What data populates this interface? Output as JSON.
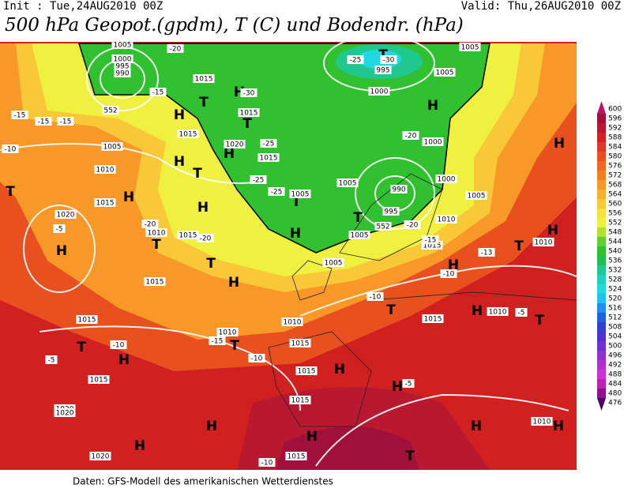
{
  "header": {
    "init": "Init : Tue,24AUG2010 00Z",
    "valid": "Valid: Thu,26AUG2010 00Z",
    "title": "500 hPa Geopot.(gpdm), T (C) und Bodendr. (hPa)"
  },
  "footer": "Daten: GFS-Modell des amerikanischen Wetterdienstes",
  "colorbar": {
    "labels": [
      600,
      596,
      592,
      588,
      584,
      580,
      576,
      572,
      568,
      564,
      560,
      556,
      552,
      548,
      544,
      540,
      536,
      532,
      528,
      524,
      520,
      516,
      512,
      508,
      504,
      500,
      496,
      492,
      488,
      484,
      480,
      476
    ],
    "colors": [
      "#c0106a",
      "#a0103a",
      "#b81830",
      "#d02020",
      "#e03828",
      "#e85020",
      "#f06820",
      "#f08020",
      "#f89828",
      "#f8b030",
      "#f8c838",
      "#f8e040",
      "#f0f040",
      "#b0e030",
      "#60d030",
      "#30c030",
      "#20c050",
      "#20c890",
      "#20d0c0",
      "#20d8e0",
      "#20c0f0",
      "#2090f0",
      "#2060e0",
      "#3040d0",
      "#5030d0",
      "#7030d0",
      "#9030d0",
      "#b030d0",
      "#d030d0",
      "#c020b0",
      "#901090",
      "#500060"
    ]
  },
  "pressure_centers": [
    "H",
    "H",
    "H",
    "H",
    "H",
    "H",
    "H",
    "H",
    "H",
    "H",
    "H",
    "H",
    "H",
    "H",
    "H",
    "H",
    "H",
    "H",
    "H",
    "H",
    "H",
    "H",
    "T",
    "T",
    "T",
    "T",
    "T",
    "T",
    "T",
    "T",
    "T",
    "T",
    "T",
    "T",
    "T",
    "T",
    "T"
  ],
  "map_labels": [
    "1005",
    "1000",
    "995",
    "990",
    "1015",
    "1015",
    "1015",
    "1020",
    "1015",
    "1005",
    "1010",
    "1015",
    "1020",
    "1010",
    "1015",
    "1015",
    "1015",
    "1010",
    "1015",
    "1015",
    "1015",
    "1020",
    "1020",
    "1015",
    "1010",
    "1005",
    "1005",
    "1005",
    "1000",
    "1000",
    "1000",
    "990",
    "995",
    "1005",
    "1005",
    "1010",
    "1015",
    "1015",
    "1010",
    "1010",
    "1005",
    "1005",
    "995",
    "1015",
    "1010",
    "1020",
    "-25",
    "-30",
    "-20",
    "-15",
    "-15",
    "-15",
    "-15",
    "-10",
    "-5",
    "-20",
    "-20",
    "-10",
    "-5",
    "-15",
    "-10",
    "-10",
    "-15",
    "-20",
    "-20",
    "-25",
    "-25",
    "-25",
    "-13",
    "-10",
    "-5",
    "-5",
    "-10",
    "-30",
    "552",
    "552"
  ]
}
